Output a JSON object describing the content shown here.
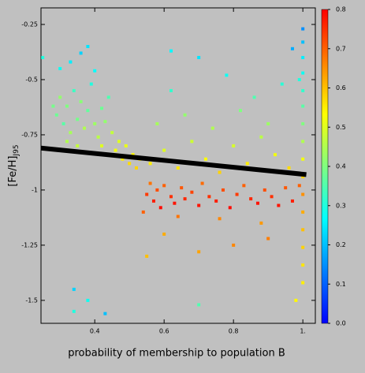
{
  "chart_data": {
    "type": "scatter",
    "xlabel": "probability of membership to population B",
    "ylabel": "[Fe/H]",
    "ylabel_sub": "J95",
    "xlim": [
      0.245,
      1.036
    ],
    "ylim": [
      -1.604,
      -0.175
    ],
    "xticks": [
      0.4,
      0.6,
      0.8,
      {
        "value": 1,
        "label": "1."
      }
    ],
    "yticks": [
      -0.25,
      -0.5,
      -0.75,
      -1,
      -1.25,
      -1.5
    ],
    "clim": [
      0,
      0.8
    ],
    "cticks": [
      {
        "value": 0,
        "label": "0.0"
      },
      0.1,
      0.2,
      0.3,
      0.4,
      0.5,
      0.6,
      0.7,
      0.8
    ],
    "colormap": [
      "#0000ff",
      "#0080ff",
      "#00ffff",
      "#80ff80",
      "#ffff00",
      "#ff8000",
      "#ff0000"
    ],
    "fit_line": {
      "x": [
        0.245,
        1.01
      ],
      "y": [
        -0.81,
        -0.93
      ],
      "color": "#000000"
    },
    "x": [
      0.29,
      0.3,
      0.31,
      0.32,
      0.33,
      0.34,
      0.35,
      0.36,
      0.37,
      0.38,
      0.39,
      0.4,
      0.41,
      0.42,
      0.43,
      0.44,
      0.45,
      0.3,
      0.33,
      0.36,
      0.4,
      0.38,
      0.28,
      0.32,
      0.35,
      0.46,
      0.47,
      0.48,
      0.49,
      0.5,
      0.51,
      0.52,
      0.53,
      0.44,
      0.42,
      0.55,
      0.56,
      0.57,
      0.58,
      0.59,
      0.6,
      0.62,
      0.63,
      0.65,
      0.66,
      0.68,
      0.7,
      0.71,
      0.73,
      0.75,
      0.77,
      0.79,
      0.81,
      0.83,
      0.85,
      0.87,
      0.89,
      0.91,
      0.93,
      0.95,
      0.97,
      0.54,
      0.64,
      0.76,
      0.88,
      0.6,
      0.8,
      0.7,
      0.55,
      0.9,
      0.56,
      0.6,
      0.64,
      0.68,
      0.72,
      0.76,
      0.8,
      0.84,
      0.88,
      0.92,
      0.96,
      0.58,
      0.66,
      0.74,
      0.82,
      0.9,
      0.62,
      0.78,
      0.86,
      0.94,
      0.7,
      0.62,
      1.0,
      1.0,
      1.0,
      1.0,
      1.0,
      1.0,
      1.0,
      1.0,
      1.0,
      1.0,
      1.0,
      1.0,
      1.0,
      1.0,
      1.0,
      1.0,
      0.99,
      0.99,
      0.98,
      0.97,
      0.34,
      0.34,
      0.38,
      0.43,
      0.7,
      0.25
    ],
    "y": [
      -0.66,
      -0.58,
      -0.7,
      -0.62,
      -0.74,
      -0.55,
      -0.68,
      -0.6,
      -0.72,
      -0.64,
      -0.52,
      -0.7,
      -0.76,
      -0.63,
      -0.69,
      -0.58,
      -0.74,
      -0.45,
      -0.42,
      -0.38,
      -0.46,
      -0.35,
      -0.62,
      -0.78,
      -0.8,
      -0.82,
      -0.78,
      -0.86,
      -0.8,
      -0.88,
      -0.84,
      -0.9,
      -0.86,
      -0.84,
      -0.8,
      -1.02,
      -0.97,
      -1.05,
      -1.0,
      -1.08,
      -0.98,
      -1.03,
      -1.06,
      -0.99,
      -1.04,
      -1.01,
      -1.07,
      -0.97,
      -1.03,
      -1.05,
      -1.0,
      -1.08,
      -1.02,
      -0.98,
      -1.04,
      -1.06,
      -1.0,
      -1.03,
      -1.07,
      -0.99,
      -1.05,
      -1.1,
      -1.12,
      -1.13,
      -1.15,
      -1.2,
      -1.25,
      -1.28,
      -1.3,
      -1.22,
      -0.88,
      -0.82,
      -0.9,
      -0.78,
      -0.86,
      -0.92,
      -0.8,
      -0.88,
      -0.76,
      -0.84,
      -0.9,
      -0.7,
      -0.66,
      -0.72,
      -0.64,
      -0.7,
      -0.55,
      -0.48,
      -0.58,
      -0.52,
      -0.4,
      -0.37,
      -0.27,
      -0.33,
      -0.4,
      -0.47,
      -0.55,
      -0.62,
      -0.7,
      -0.78,
      -0.86,
      -0.94,
      -1.02,
      -1.1,
      -1.18,
      -1.26,
      -1.34,
      -1.42,
      -0.5,
      -0.98,
      -1.5,
      -0.36,
      -1.45,
      -1.55,
      -1.5,
      -1.56,
      -1.52,
      -0.4
    ],
    "color_values": [
      0.38,
      0.42,
      0.36,
      0.4,
      0.44,
      0.33,
      0.39,
      0.41,
      0.45,
      0.37,
      0.3,
      0.43,
      0.46,
      0.38,
      0.42,
      0.35,
      0.47,
      0.28,
      0.25,
      0.22,
      0.27,
      0.24,
      0.39,
      0.45,
      0.47,
      0.52,
      0.5,
      0.55,
      0.51,
      0.57,
      0.54,
      0.58,
      0.56,
      0.53,
      0.5,
      0.74,
      0.68,
      0.77,
      0.72,
      0.79,
      0.7,
      0.75,
      0.78,
      0.71,
      0.76,
      0.73,
      0.78,
      0.69,
      0.75,
      0.77,
      0.72,
      0.79,
      0.74,
      0.7,
      0.76,
      0.78,
      0.72,
      0.75,
      0.78,
      0.71,
      0.77,
      0.7,
      0.68,
      0.66,
      0.64,
      0.62,
      0.66,
      0.63,
      0.6,
      0.67,
      0.55,
      0.5,
      0.56,
      0.48,
      0.53,
      0.58,
      0.49,
      0.55,
      0.46,
      0.52,
      0.57,
      0.44,
      0.42,
      0.45,
      0.4,
      0.43,
      0.32,
      0.28,
      0.35,
      0.31,
      0.24,
      0.26,
      0.15,
      0.2,
      0.25,
      0.28,
      0.32,
      0.36,
      0.4,
      0.45,
      0.52,
      0.58,
      0.65,
      0.62,
      0.6,
      0.58,
      0.56,
      0.55,
      0.3,
      0.7,
      0.54,
      0.18,
      0.22,
      0.3,
      0.28,
      0.2,
      0.35,
      0.3
    ]
  }
}
